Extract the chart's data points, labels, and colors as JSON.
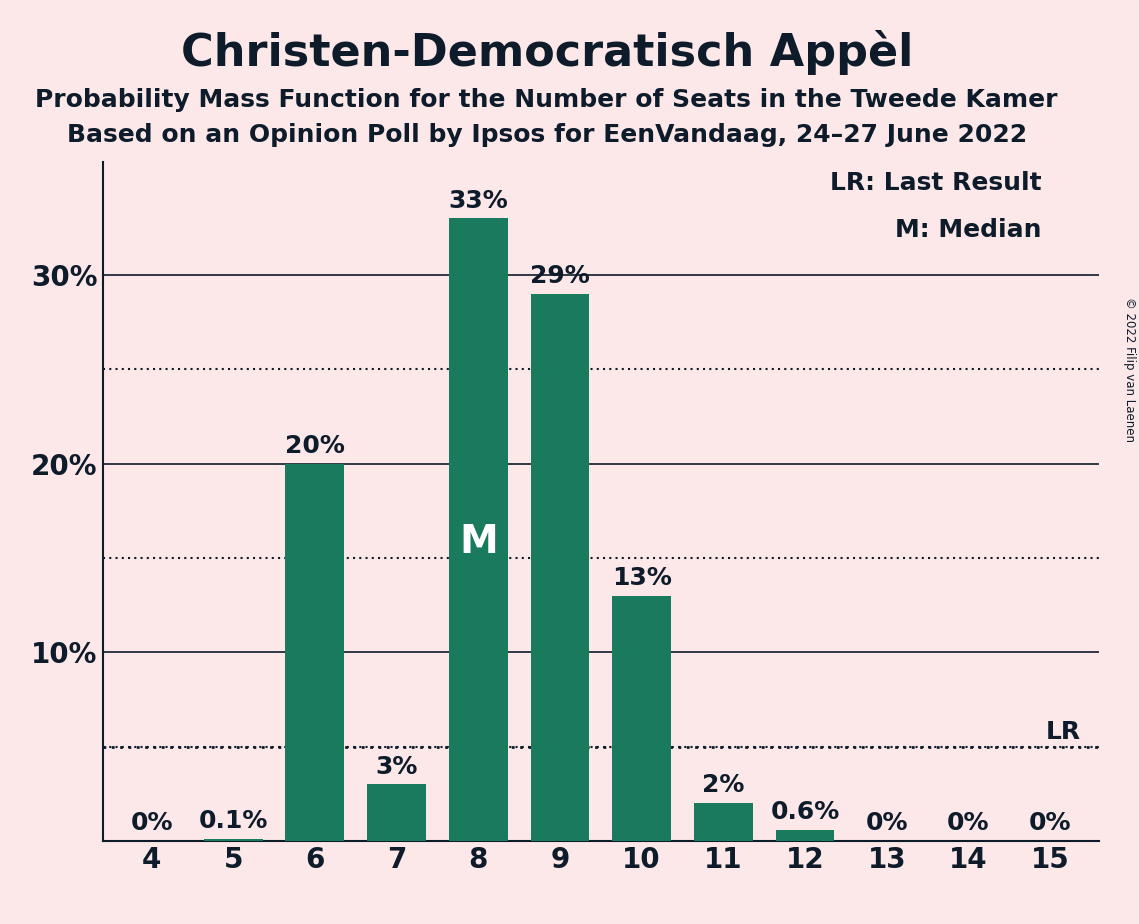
{
  "title": "Christen-Democratisch Appèl",
  "subtitle1": "Probability Mass Function for the Number of Seats in the Tweede Kamer",
  "subtitle2": "Based on an Opinion Poll by Ipsos for EenVandaag, 24–27 June 2022",
  "copyright": "© 2022 Filip van Laenen",
  "categories": [
    4,
    5,
    6,
    7,
    8,
    9,
    10,
    11,
    12,
    13,
    14,
    15
  ],
  "values": [
    0.0,
    0.1,
    20.0,
    3.0,
    33.0,
    29.0,
    13.0,
    2.0,
    0.6,
    0.0,
    0.0,
    0.0
  ],
  "labels": [
    "0%",
    "0.1%",
    "20%",
    "3%",
    "33%",
    "29%",
    "13%",
    "2%",
    "0.6%",
    "0%",
    "0%",
    "0%"
  ],
  "bar_color": "#1a7a5e",
  "background_color": "#fce8e8",
  "text_color": "#0d1b2a",
  "median_seat": 8,
  "lr_value": 5.0,
  "lr_label": "LR",
  "legend_lr": "LR: Last Result",
  "legend_m": "M: Median",
  "yticks_solid": [
    10,
    20,
    30
  ],
  "yticks_dotted": [
    5,
    15,
    25
  ],
  "ymax": 36,
  "title_fontsize": 32,
  "subtitle_fontsize": 18,
  "label_fontsize": 18,
  "tick_fontsize": 20,
  "legend_fontsize": 18,
  "m_fontsize": 28
}
